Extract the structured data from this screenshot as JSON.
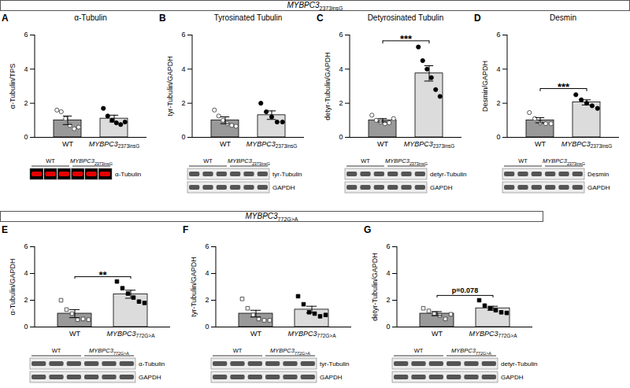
{
  "groups": [
    {
      "label": "MYBPC3 2373insG",
      "panels": [
        "A",
        "B",
        "C",
        "D"
      ]
    },
    {
      "label": "MYBPC3 772G>A",
      "panels": [
        "E",
        "F",
        "G"
      ]
    }
  ],
  "chart_data": [
    {
      "type": "bar",
      "panel": "A",
      "title": "α-Tubulin",
      "ylabel": "α-Tubulin/TPS",
      "categories": [
        "WT",
        "MYBPC3 2373insG"
      ],
      "values": [
        1.0,
        1.1
      ],
      "errors": [
        0.25,
        0.2
      ],
      "points": [
        [
          1.6,
          1.5,
          1.1,
          0.7,
          0.5,
          0.6
        ],
        [
          1.7,
          1.25,
          1.0,
          0.85,
          0.75,
          0.9
        ]
      ],
      "colors": [
        "#999999",
        "#dcdcdc"
      ],
      "marker": "circle",
      "ylim": [
        0,
        6
      ],
      "yticks": [
        0,
        2,
        4,
        6
      ],
      "blots": [
        {
          "label": "α-Tubulin",
          "color": "red"
        }
      ]
    },
    {
      "type": "bar",
      "panel": "B",
      "title": "Tyrosinated Tubulin",
      "ylabel": "tyr-Tubulin/GAPDH",
      "categories": [
        "WT",
        "MYBPC3 2373insG"
      ],
      "values": [
        1.0,
        1.3
      ],
      "errors": [
        0.2,
        0.25
      ],
      "points": [
        [
          1.6,
          1.25,
          1.0,
          0.8,
          0.7,
          0.65
        ],
        [
          2.0,
          1.5,
          1.2,
          0.9,
          0.9
        ]
      ],
      "colors": [
        "#999999",
        "#dcdcdc"
      ],
      "marker": "circle",
      "ylim": [
        0,
        6
      ],
      "yticks": [
        0,
        2,
        4,
        6
      ],
      "blots": [
        {
          "label": "tyr-Tubulin"
        },
        {
          "label": "GAPDH"
        }
      ]
    },
    {
      "type": "bar",
      "panel": "C",
      "title": "Detyrosinated Tubulin",
      "ylabel": "detyr-Tubulin/GAPDH",
      "categories": [
        "WT",
        "MYBPC3 2373insG"
      ],
      "values": [
        1.0,
        3.75
      ],
      "errors": [
        0.1,
        0.45
      ],
      "points": [
        [
          1.3,
          1.0,
          0.9,
          0.8,
          0.85,
          1.1
        ],
        [
          5.3,
          4.5,
          4.0,
          3.5,
          2.8,
          2.4
        ]
      ],
      "colors": [
        "#999999",
        "#dcdcdc"
      ],
      "marker": "circle",
      "annotation": "***",
      "ylim": [
        0,
        6
      ],
      "yticks": [
        0,
        2,
        4,
        6
      ],
      "blots": [
        {
          "label": "detyr-Tubulin"
        },
        {
          "label": "GAPDH"
        }
      ]
    },
    {
      "type": "bar",
      "panel": "D",
      "title": "Desmin",
      "ylabel": "Desmin/GAPDH",
      "categories": [
        "WT",
        "MYBPC3 2373insG"
      ],
      "values": [
        1.0,
        2.05
      ],
      "errors": [
        0.15,
        0.15
      ],
      "points": [
        [
          1.45,
          1.1,
          0.85,
          0.8,
          0.8
        ],
        [
          2.5,
          2.2,
          2.0,
          1.85,
          1.7
        ]
      ],
      "colors": [
        "#999999",
        "#dcdcdc"
      ],
      "marker": "circle",
      "annotation": "***",
      "ylim": [
        0,
        6
      ],
      "yticks": [
        0,
        2,
        4,
        6
      ],
      "blots": [
        {
          "label": "Desmin"
        },
        {
          "label": "GAPDH"
        }
      ]
    },
    {
      "type": "bar",
      "panel": "E",
      "ylabel": "α-Tubulin/GAPDH",
      "categories": [
        "WT",
        "MYBPC3 772G>A"
      ],
      "values": [
        1.0,
        2.45
      ],
      "errors": [
        0.3,
        0.3
      ],
      "points": [
        [
          2.0,
          1.3,
          1.0,
          0.55,
          0.6,
          0.55
        ],
        [
          3.4,
          2.9,
          2.5,
          2.2,
          1.9,
          1.8
        ]
      ],
      "colors": [
        "#999999",
        "#dcdcdc"
      ],
      "marker": "square",
      "annotation": "**",
      "ylim": [
        0,
        6
      ],
      "yticks": [
        0,
        2,
        4,
        6
      ],
      "blots": [
        {
          "label": "α-Tubulin"
        },
        {
          "label": "GAPDH"
        }
      ]
    },
    {
      "type": "bar",
      "panel": "F",
      "ylabel": "tyr-Tubulin/GAPDH",
      "categories": [
        "WT",
        "MYBPC3 772G>A"
      ],
      "values": [
        1.0,
        1.3
      ],
      "errors": [
        0.25,
        0.25
      ],
      "points": [
        [
          2.1,
          1.4,
          0.9,
          0.6,
          0.5,
          0.5
        ],
        [
          2.3,
          1.7,
          1.1,
          1.0,
          0.8,
          0.9
        ]
      ],
      "colors": [
        "#999999",
        "#dcdcdc"
      ],
      "marker": "square",
      "ylim": [
        0,
        6
      ],
      "yticks": [
        0,
        2,
        4,
        6
      ],
      "blots": [
        {
          "label": "tyr-Tubulin"
        },
        {
          "label": "GAPDH"
        }
      ]
    },
    {
      "type": "bar",
      "panel": "G",
      "ylabel": "detyr-Tubulin/GAPDH",
      "categories": [
        "WT",
        "MYBPC3 772G>A"
      ],
      "values": [
        1.0,
        1.4
      ],
      "errors": [
        0.15,
        0.15
      ],
      "points": [
        [
          1.4,
          1.2,
          1.0,
          0.85,
          0.6,
          0.95
        ],
        [
          2.0,
          1.6,
          1.4,
          1.25,
          1.1,
          1.05
        ]
      ],
      "colors": [
        "#999999",
        "#dcdcdc"
      ],
      "marker": "square",
      "annotation": "p=0.078",
      "ylim": [
        0,
        6
      ],
      "yticks": [
        0,
        2,
        4,
        6
      ],
      "blots": [
        {
          "label": "detyr-Tubulin"
        },
        {
          "label": "GAPDH"
        }
      ]
    }
  ]
}
